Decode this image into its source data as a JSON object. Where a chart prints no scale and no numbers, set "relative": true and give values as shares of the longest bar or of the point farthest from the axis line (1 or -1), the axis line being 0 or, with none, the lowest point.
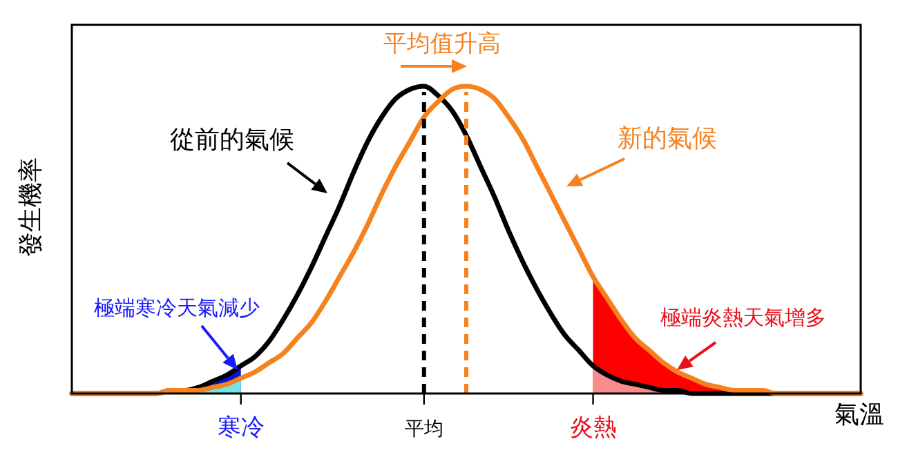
{
  "chart_data": {
    "type": "line",
    "relative": true,
    "xlabel": "氣溫",
    "ylabel": "發生機率",
    "categories": [
      null,
      null,
      null,
      null,
      null,
      null,
      null,
      null,
      null,
      null,
      null,
      null,
      "寒冷",
      null,
      null,
      null,
      null,
      null,
      null,
      null,
      null,
      null,
      null,
      null,
      null,
      "平均",
      null,
      null,
      null,
      null,
      null,
      null,
      null,
      null,
      null,
      null,
      null,
      "炎熱",
      null,
      null,
      null,
      null,
      null,
      null,
      null,
      null,
      null,
      null,
      null,
      null,
      null,
      null,
      null,
      null,
      null,
      null,
      null
    ],
    "series": [
      {
        "type": "area",
        "color": "#0a14d0",
        "values": [
          0,
          0,
          0,
          0,
          0,
          0,
          0,
          0.01,
          0.01,
          0.02,
          0.04,
          0.06,
          0.09,
          null,
          null,
          null,
          null,
          null,
          null,
          null,
          null,
          null,
          null,
          null,
          null,
          null,
          null,
          null,
          null,
          null,
          null,
          null,
          null,
          null,
          null,
          null,
          null,
          null,
          null,
          null,
          null,
          null,
          null,
          null,
          null,
          null,
          null,
          null,
          null,
          null,
          null,
          null,
          null,
          null,
          null,
          null,
          null
        ]
      },
      {
        "type": "area",
        "color": "#6ee6e6",
        "values": [
          0,
          0,
          0,
          0,
          0,
          0,
          0,
          0.01,
          0.01,
          0.01,
          0.02,
          0.03,
          0.05,
          null,
          null,
          null,
          null,
          null,
          null,
          null,
          null,
          null,
          null,
          null,
          null,
          null,
          null,
          null,
          null,
          null,
          null,
          null,
          null,
          null,
          null,
          null,
          null,
          null,
          null,
          null,
          null,
          null,
          null,
          null,
          null,
          null,
          null,
          null,
          null,
          null,
          null,
          null,
          null,
          null,
          null,
          null,
          null
        ]
      },
      {
        "type": "area",
        "color": "#ff0000",
        "values": [
          null,
          null,
          null,
          null,
          null,
          null,
          null,
          null,
          null,
          null,
          null,
          null,
          null,
          null,
          null,
          null,
          null,
          null,
          null,
          null,
          null,
          null,
          null,
          null,
          null,
          null,
          null,
          null,
          null,
          null,
          null,
          null,
          null,
          null,
          null,
          null,
          null,
          0.38,
          0.31,
          0.24,
          0.18,
          0.14,
          0.1,
          0.07,
          0.05,
          0.03,
          0.02,
          0.01,
          0.01,
          0.01,
          0,
          0,
          0,
          0,
          0,
          0,
          0
        ]
      },
      {
        "type": "area",
        "color": "#f88c8c",
        "values": [
          null,
          null,
          null,
          null,
          null,
          null,
          null,
          null,
          null,
          null,
          null,
          null,
          null,
          null,
          null,
          null,
          null,
          null,
          null,
          null,
          null,
          null,
          null,
          null,
          null,
          null,
          null,
          null,
          null,
          null,
          null,
          null,
          null,
          null,
          null,
          null,
          null,
          0.09,
          0.06,
          0.04,
          0.03,
          0.02,
          0.01,
          0.01,
          0,
          0,
          0,
          0,
          0,
          0,
          0,
          0,
          0,
          0,
          0,
          0,
          0
        ]
      },
      {
        "color": "#000000",
        "values": [
          0,
          0,
          0,
          0,
          0,
          0,
          0,
          0.01,
          0.01,
          0.02,
          0.04,
          0.06,
          0.09,
          0.12,
          0.17,
          0.24,
          0.32,
          0.41,
          0.51,
          0.61,
          0.72,
          0.82,
          0.9,
          0.96,
          0.99,
          1,
          0.97,
          0.92,
          0.84,
          0.74,
          0.64,
          0.53,
          0.43,
          0.34,
          0.26,
          0.19,
          0.14,
          0.09,
          0.06,
          0.04,
          0.03,
          0.02,
          0.01,
          0.01,
          0,
          0,
          0,
          0,
          0,
          0,
          0,
          0,
          0,
          0,
          0,
          0,
          0
        ]
      },
      {
        "color": "#f5821f",
        "values": [
          0,
          0,
          0,
          0,
          0,
          0,
          0,
          0.01,
          0.01,
          0.01,
          0.02,
          0.03,
          0.05,
          0.07,
          0.1,
          0.13,
          0.18,
          0.23,
          0.3,
          0.38,
          0.46,
          0.55,
          0.65,
          0.74,
          0.82,
          0.9,
          0.95,
          0.99,
          1,
          0.99,
          0.96,
          0.9,
          0.83,
          0.74,
          0.65,
          0.56,
          0.47,
          0.38,
          0.31,
          0.24,
          0.18,
          0.14,
          0.1,
          0.07,
          0.05,
          0.03,
          0.02,
          0.01,
          0.01,
          0.01,
          0,
          0,
          0,
          0,
          0,
          0,
          0
        ]
      }
    ],
    "ref_lines": [
      {
        "axis": "x",
        "value": "平均",
        "color": "#000000",
        "line_style": "dashed"
      }
    ],
    "annotations": [
      "平均值升高",
      "從前的氣候",
      "新的氣候",
      "極端寒冷天氣減少",
      "極端炎熱天氣增多"
    ]
  }
}
